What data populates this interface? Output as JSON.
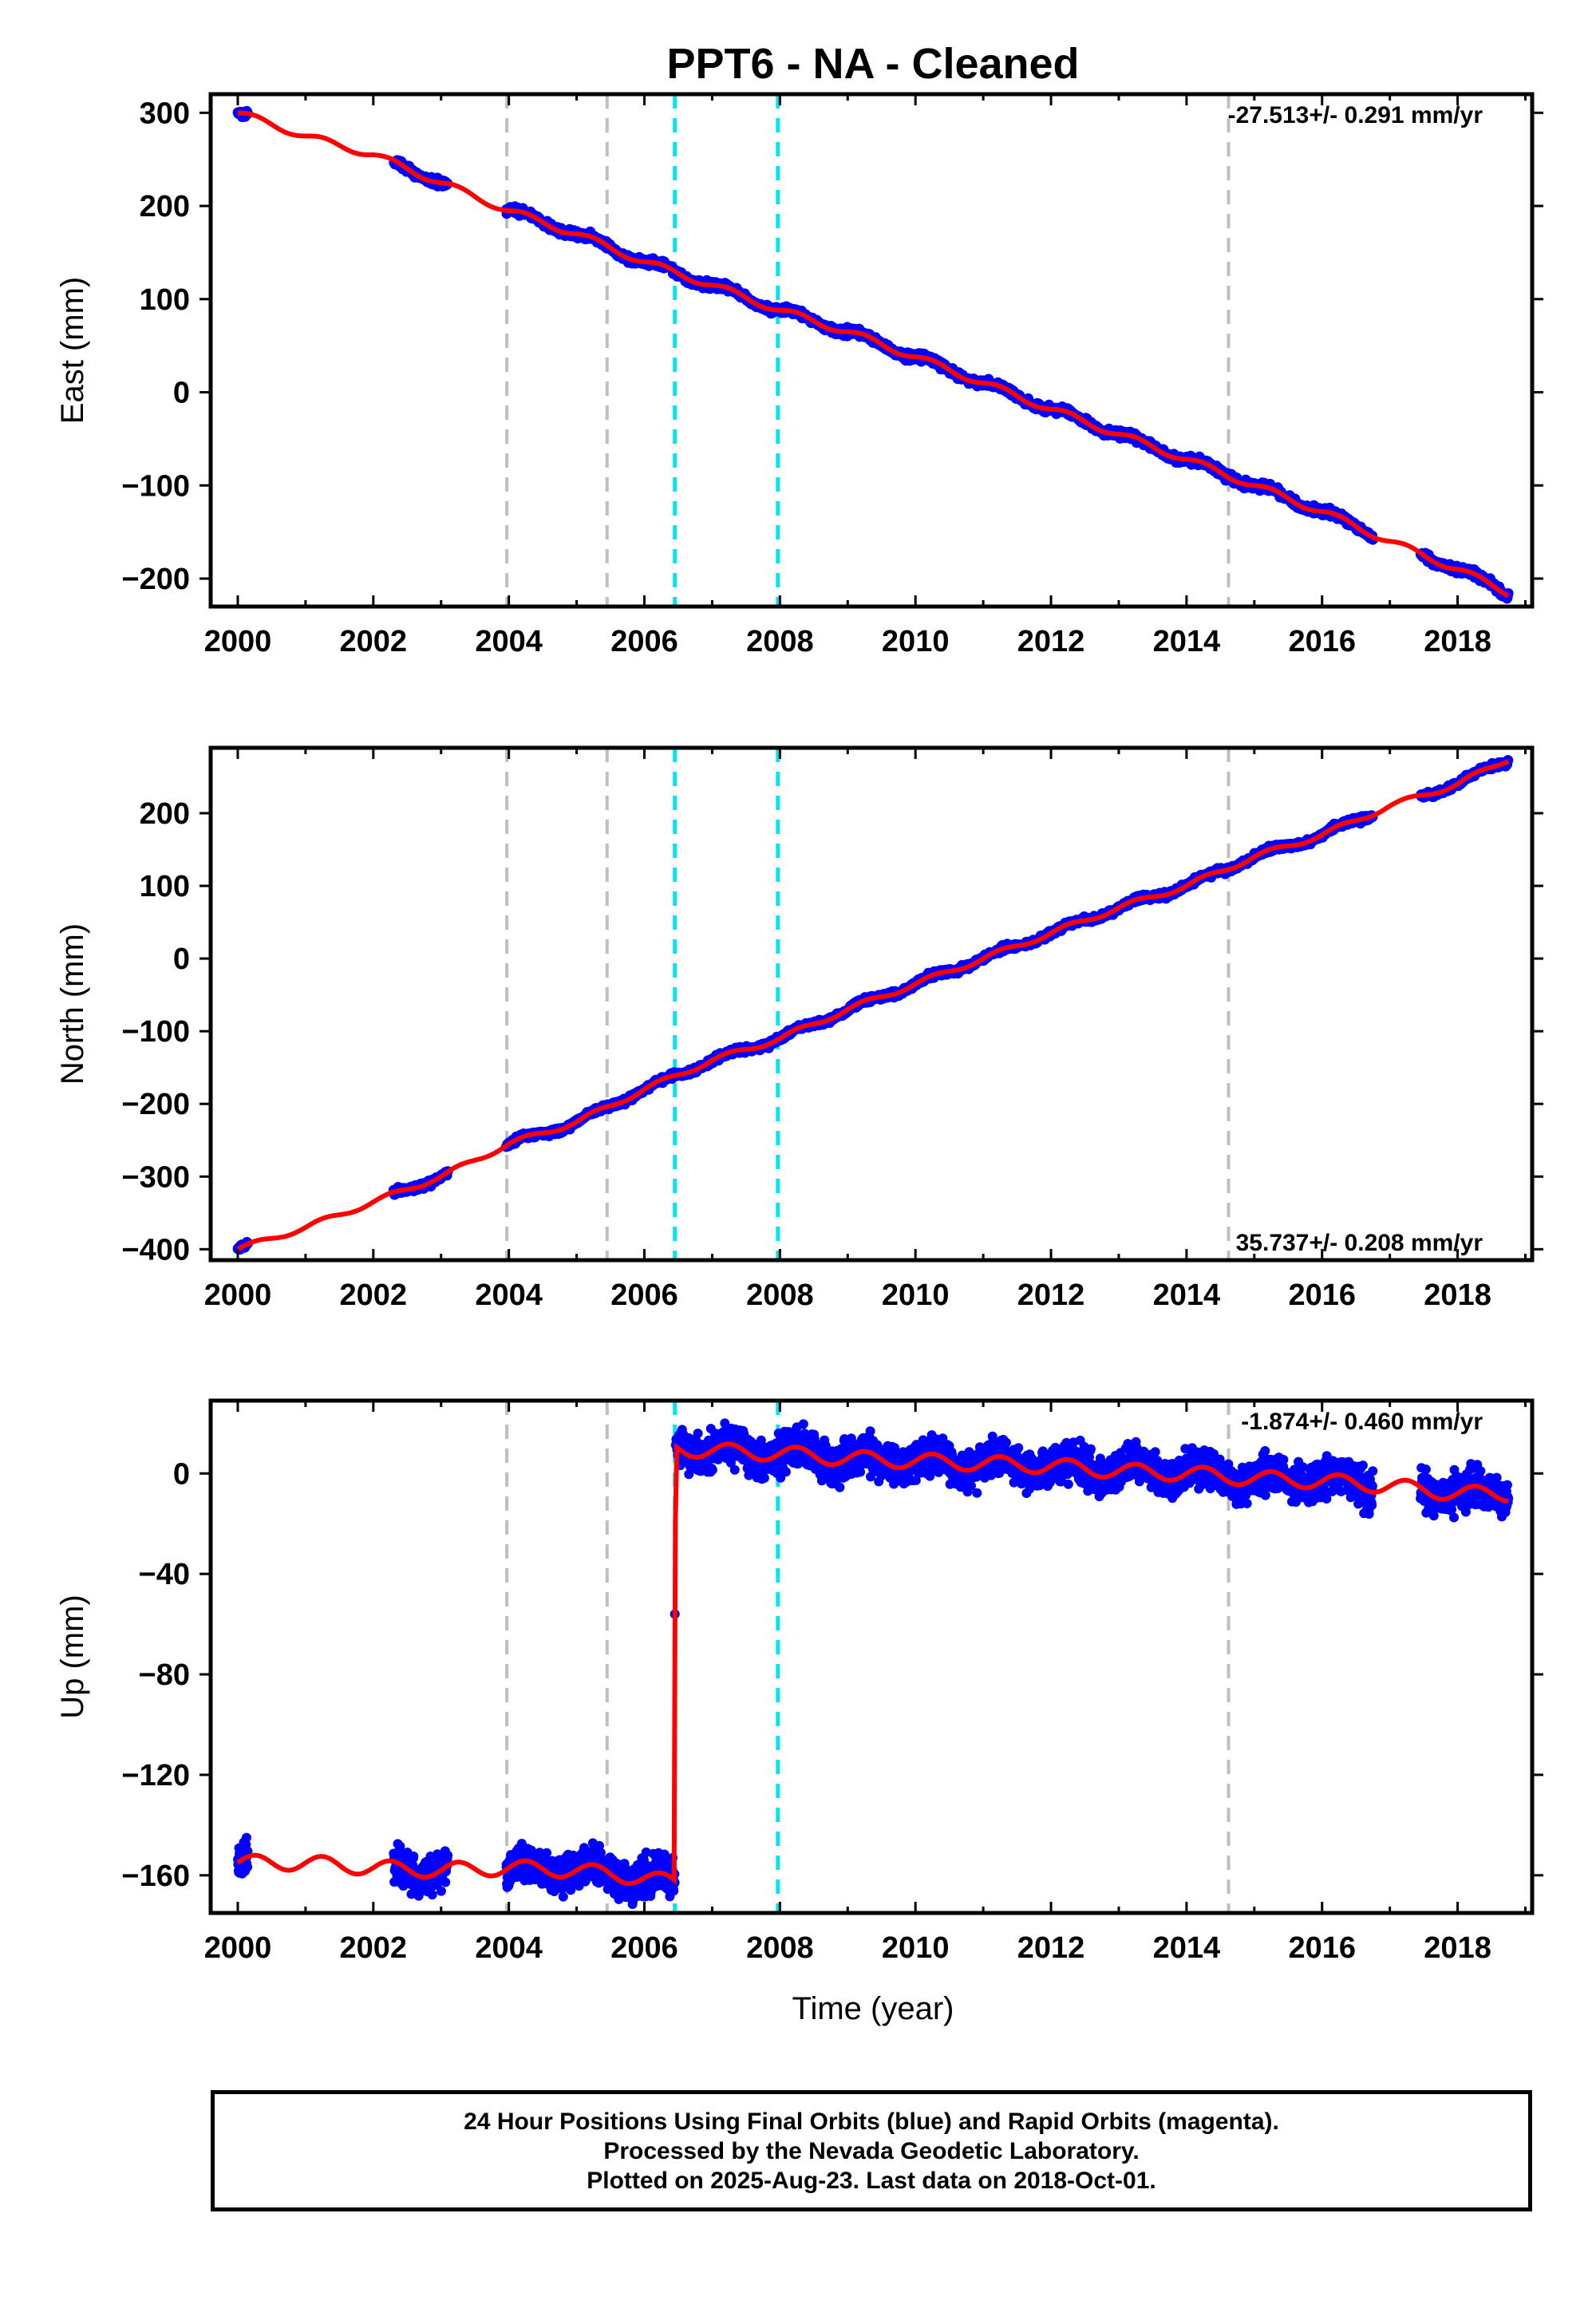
{
  "title": "PPT6  - NA - Cleaned",
  "xlabel": "Time (year)",
  "footer": {
    "line1": "24 Hour Positions Using Final Orbits (blue) and Rapid Orbits (magenta).",
    "line2": "Processed by the Nevada Geodetic Laboratory.",
    "line3": "Plotted on 2025-Aug-23. Last data on 2018-Oct-01."
  },
  "colors": {
    "data": "#0000ff",
    "model": "#ff0000",
    "equipment_change": "#bfbfbf",
    "earthquake": "#00e5ee",
    "frame": "#000000"
  },
  "chart_data": [
    {
      "type": "scatter",
      "component": "east",
      "ylabel": "East (mm)",
      "rate_text": "-27.513+/- 0.291 mm/yr",
      "rate_position": "top-right",
      "xlim": [
        1999.6,
        2019.1
      ],
      "ylim": [
        -230,
        320
      ],
      "xticks": [
        "2000",
        "2002",
        "2004",
        "2006",
        "2008",
        "2010",
        "2012",
        "2014",
        "2016",
        "2018"
      ],
      "yticks": [
        "300",
        "200",
        "100",
        "0",
        "−100",
        "−200"
      ],
      "data_segments": [
        [
          2000.0,
          2000.15
        ],
        [
          2002.3,
          2003.1
        ],
        [
          2003.96,
          2016.75
        ],
        [
          2017.45,
          2018.75
        ]
      ],
      "vlines_gray": [
        2003.97,
        2005.45,
        2014.62
      ],
      "vlines_cyan": [
        2006.45,
        2007.97
      ],
      "model_points": {
        "x": [
          2000.0,
          2001.0,
          2002.0,
          2003.0,
          2004.0,
          2005.0,
          2006.0,
          2007.0,
          2008.0,
          2009.0,
          2010.0,
          2011.0,
          2012.0,
          2013.0,
          2014.0,
          2015.0,
          2016.0,
          2017.0,
          2018.0,
          2018.75
        ],
        "y": [
          300,
          275,
          255,
          225,
          195,
          170,
          140,
          115,
          88,
          65,
          38,
          10,
          -18,
          -45,
          -72,
          -100,
          -128,
          -160,
          -190,
          -215
        ]
      }
    },
    {
      "type": "scatter",
      "component": "north",
      "ylabel": "North (mm)",
      "rate_text": "35.737+/- 0.208 mm/yr",
      "rate_position": "bottom-right",
      "xlim": [
        1999.6,
        2019.1
      ],
      "ylim": [
        -415,
        290
      ],
      "xticks": [
        "2000",
        "2002",
        "2004",
        "2006",
        "2008",
        "2010",
        "2012",
        "2014",
        "2016",
        "2018"
      ],
      "yticks": [
        "200",
        "100",
        "0",
        "−100",
        "−200",
        "−300",
        "−400"
      ],
      "data_segments": [
        [
          2000.0,
          2000.15
        ],
        [
          2002.3,
          2003.1
        ],
        [
          2003.96,
          2016.75
        ],
        [
          2017.45,
          2018.75
        ]
      ],
      "vlines_gray": [
        2003.97,
        2005.45,
        2014.62
      ],
      "vlines_cyan": [
        2006.45,
        2007.97
      ],
      "model_points": {
        "x": [
          2000.0,
          2001.0,
          2002.0,
          2003.0,
          2004.0,
          2005.0,
          2006.0,
          2007.0,
          2008.0,
          2009.0,
          2010.0,
          2011.0,
          2012.0,
          2013.0,
          2014.0,
          2015.0,
          2016.0,
          2017.0,
          2018.0,
          2018.75
        ],
        "y": [
          -400,
          -370,
          -335,
          -300,
          -255,
          -225,
          -180,
          -140,
          -110,
          -70,
          -35,
          0,
          35,
          70,
          100,
          140,
          170,
          210,
          240,
          275
        ]
      }
    },
    {
      "type": "scatter",
      "component": "up",
      "ylabel": "Up (mm)",
      "rate_text": "-1.874+/- 0.460 mm/yr",
      "rate_position": "top-right",
      "xlim": [
        1999.6,
        2019.1
      ],
      "ylim": [
        -175,
        29
      ],
      "xticks": [
        "2000",
        "2002",
        "2004",
        "2006",
        "2008",
        "2010",
        "2012",
        "2014",
        "2016",
        "2018"
      ],
      "yticks": [
        "0",
        "−40",
        "−80",
        "−120",
        "−160"
      ],
      "data_segments": [
        [
          2000.0,
          2000.15
        ],
        [
          2002.3,
          2003.1
        ],
        [
          2003.96,
          2006.45
        ],
        [
          2006.46,
          2016.75
        ],
        [
          2017.45,
          2018.75
        ]
      ],
      "vlines_gray": [
        2003.97,
        2005.45,
        2014.62
      ],
      "vlines_cyan": [
        2006.45,
        2007.97
      ],
      "offset_point": {
        "x": 2006.45,
        "y": -56
      },
      "model_points": {
        "x": [
          2000.0,
          2001.0,
          2002.0,
          2003.0,
          2004.0,
          2005.0,
          2006.0,
          2006.45,
          2006.46,
          2007.0,
          2008.0,
          2009.0,
          2010.0,
          2011.0,
          2012.0,
          2013.0,
          2014.0,
          2015.0,
          2016.0,
          2017.0,
          2018.0,
          2018.75
        ],
        "y": [
          -155,
          -155,
          -157,
          -158,
          -157,
          -158,
          -161,
          -163,
          10,
          9,
          8,
          6,
          5,
          4,
          3,
          1,
          0,
          -2,
          -3,
          -5,
          -8,
          -8
        ]
      }
    }
  ]
}
